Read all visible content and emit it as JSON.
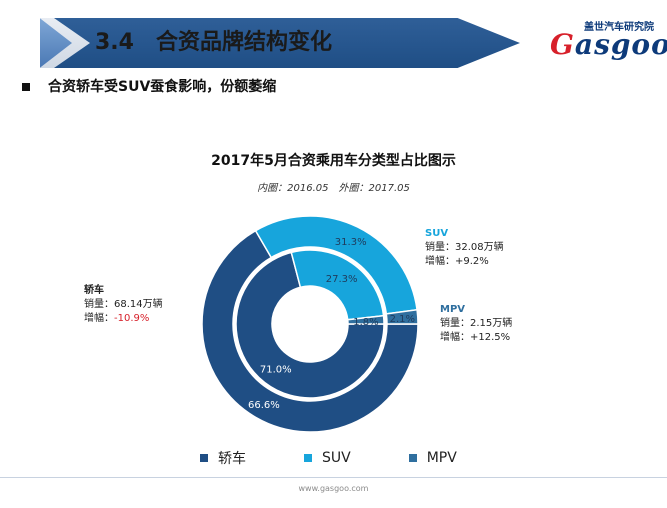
{
  "header": {
    "title": "3.4　合资品牌结构变化"
  },
  "logo": {
    "cn": "盖世汽车研究院",
    "en_first": "G",
    "en_rest": "asgoo"
  },
  "bullet": {
    "text": "合资轿车受SUV蚕食影响，份额萎缩"
  },
  "chart": {
    "title": "2017年5月合资乘用车分类型占比图示",
    "subtitle": "内圈：2016.05　外圈：2017.05"
  },
  "colors": {
    "sedan": "#1f4e84",
    "suv": "#17a5dc",
    "mpv": "#2f6f9f",
    "header": "#1f4e85",
    "accent": "#d7202a"
  },
  "chart_data": {
    "type": "pie",
    "variant": "nested-donut",
    "title": "2017年5月合资乘用车分类型占比图示",
    "subtitle": "内圈：2016.05　外圈：2017.05",
    "categories": [
      "轿车",
      "SUV",
      "MPV"
    ],
    "series": [
      {
        "ring": "inner",
        "name": "2016.05",
        "values": [
          71.0,
          27.3,
          1.8
        ],
        "labels": [
          "71.0%",
          "27.3%",
          "1.8%"
        ]
      },
      {
        "ring": "outer",
        "name": "2017.05",
        "values": [
          66.6,
          31.3,
          2.1
        ],
        "labels": [
          "66.6%",
          "31.3%",
          "2.1%"
        ]
      }
    ],
    "legend": {
      "position": "bottom",
      "entries": [
        "轿车",
        "SUV",
        "MPV"
      ]
    }
  },
  "callouts": {
    "sedan": {
      "name": "轿车",
      "sales": "销量：68.14万辆",
      "growth_label": "增幅：",
      "growth_value": "-10.9%"
    },
    "suv": {
      "name": "SUV",
      "sales": "销量：32.08万辆",
      "growth": "增幅：+9.2%"
    },
    "mpv": {
      "name": "MPV",
      "sales": "销量：2.15万辆",
      "growth": "增幅：+12.5%"
    }
  },
  "footer": {
    "url": "www.gasgoo.com"
  }
}
